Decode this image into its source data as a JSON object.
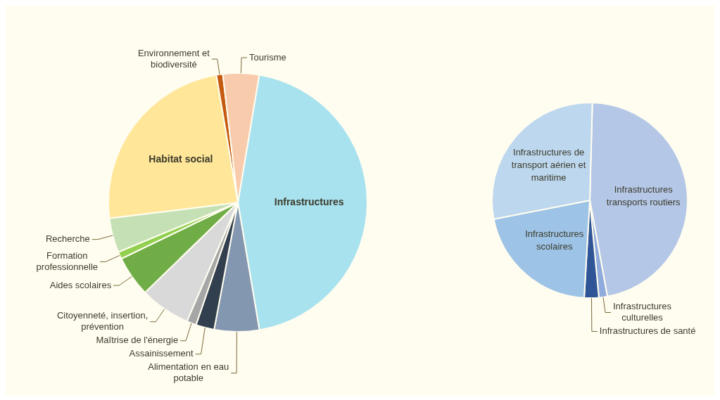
{
  "chart_data": [
    {
      "type": "pie",
      "categories": [
        "Infrastructures",
        "Alimentation en eau potable",
        "Assainissement",
        "Maîtrise de l'énergie",
        "Citoyenneté, insertion, prévention",
        "Aides scolaires",
        "Formation professionnelle",
        "Recherche",
        "Habitat social",
        "Environnement et biodiversité",
        "Tourisme"
      ],
      "values": [
        44.7,
        5.6,
        2.3,
        1.2,
        6.3,
        5.1,
        0.9,
        4.3,
        24.3,
        0.8,
        4.5
      ],
      "colors": [
        "#a8e2ef",
        "#8497b0",
        "#323f4f",
        "#a6a6a6",
        "#d9d9d9",
        "#70ad47",
        "#92d050",
        "#c5e0b4",
        "#ffe699",
        "#c55a11",
        "#f8cbad"
      ]
    },
    {
      "type": "pie",
      "categories": [
        "Infrastructures transports routiers",
        "Infrastructures culturelles",
        "Infrastructures de santé",
        "Infrastructures scolaires",
        "Infrastructures de transport aérien et maritime"
      ],
      "values": [
        46.7,
        1.4,
        2.4,
        21,
        28.5
      ],
      "colors": [
        "#b4c7e7",
        "#8faadc",
        "#2f5597",
        "#9dc3e6",
        "#bdd7ee"
      ]
    }
  ]
}
